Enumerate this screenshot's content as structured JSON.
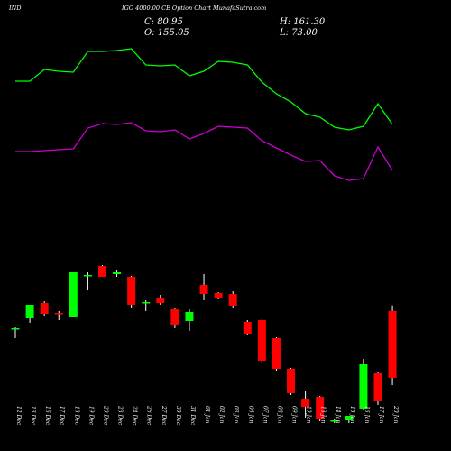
{
  "header": {
    "symbol": "IND",
    "subtitle": "IGO 4000.00  CE Option  Chart MunafaSutra.com",
    "close": "C: 80.95",
    "open": "O: 155.05",
    "high": "H: 161.30",
    "low": "L: 73.00"
  },
  "colors": {
    "background": "#000000",
    "bull": "#00ff00",
    "bear": "#ff0000",
    "line_upper": "#00ff00",
    "line_lower": "#cc00cc",
    "text": "#ffffff"
  },
  "chart_data": {
    "type": "candlestick",
    "categories": [
      "12 Dec",
      "13 Dec",
      "16 Dec",
      "17 Dec",
      "18 Dec",
      "19 Dec",
      "20 Dec",
      "23 Dec",
      "24 Dec",
      "26 Dec",
      "27 Dec",
      "30 Dec",
      "31 Dec",
      "01 Jan",
      "02 Jan",
      "03 Jan",
      "06 Jan",
      "07 Jan",
      "08 Jan",
      "09 Jan",
      "10 Jan",
      "13 Jan",
      "14 Jan",
      "15 Jan",
      "16 Jan",
      "17 Jan",
      "20 Jan"
    ],
    "candles": [
      {
        "o": 135,
        "h": 138,
        "l": 125,
        "c": 136
      },
      {
        "o": 147,
        "h": 160,
        "l": 142,
        "c": 162
      },
      {
        "o": 164,
        "h": 166,
        "l": 150,
        "c": 152
      },
      {
        "o": 153,
        "h": 155,
        "l": 145,
        "c": 152
      },
      {
        "o": 149,
        "h": 196,
        "l": 150,
        "c": 198
      },
      {
        "o": 195,
        "h": 199,
        "l": 179,
        "c": 195
      },
      {
        "o": 205,
        "h": 206,
        "l": 193,
        "c": 193
      },
      {
        "o": 196,
        "h": 201,
        "l": 193,
        "c": 199
      },
      {
        "o": 193,
        "h": 194,
        "l": 158,
        "c": 162
      },
      {
        "o": 165,
        "h": 167,
        "l": 155,
        "c": 165
      },
      {
        "o": 170,
        "h": 173,
        "l": 162,
        "c": 164
      },
      {
        "o": 157,
        "h": 158,
        "l": 136,
        "c": 140
      },
      {
        "o": 144,
        "h": 157,
        "l": 133,
        "c": 154
      },
      {
        "o": 184,
        "h": 196,
        "l": 167,
        "c": 174
      },
      {
        "o": 175,
        "h": 176,
        "l": 168,
        "c": 170
      },
      {
        "o": 174,
        "h": 177,
        "l": 159,
        "c": 161
      },
      {
        "o": 143,
        "h": 145,
        "l": 129,
        "c": 130
      },
      {
        "o": 145,
        "h": 146,
        "l": 98,
        "c": 100
      },
      {
        "o": 125,
        "h": 126,
        "l": 89,
        "c": 91
      },
      {
        "o": 91,
        "h": 92,
        "l": 62,
        "c": 64
      },
      {
        "o": 58,
        "h": 66,
        "l": 37,
        "c": 49
      },
      {
        "o": 60,
        "h": 61,
        "l": 33,
        "c": 36
      },
      {
        "o": 34,
        "h": 36,
        "l": 31,
        "c": 34
      },
      {
        "o": 34,
        "h": 38,
        "l": 31,
        "c": 39
      },
      {
        "o": 47,
        "h": 102,
        "l": 45,
        "c": 96
      },
      {
        "o": 87,
        "h": 88,
        "l": 51,
        "c": 55
      },
      {
        "o": 155.05,
        "h": 161.3,
        "l": 73.0,
        "c": 80.95
      }
    ],
    "upper_band": [
      410,
      410,
      423,
      421,
      420,
      443,
      443,
      444,
      446,
      428,
      427,
      428,
      416,
      421,
      432,
      431,
      428,
      409,
      396,
      387,
      374,
      370,
      359,
      356,
      360,
      385,
      362
    ],
    "lower_band": [
      332,
      332,
      333,
      334,
      335,
      358,
      363,
      362,
      364,
      355,
      354,
      356,
      346,
      352,
      360,
      359,
      358,
      344,
      336,
      328,
      321,
      322,
      305,
      300,
      302,
      337,
      311
    ],
    "ylim": [
      0,
      500
    ]
  }
}
